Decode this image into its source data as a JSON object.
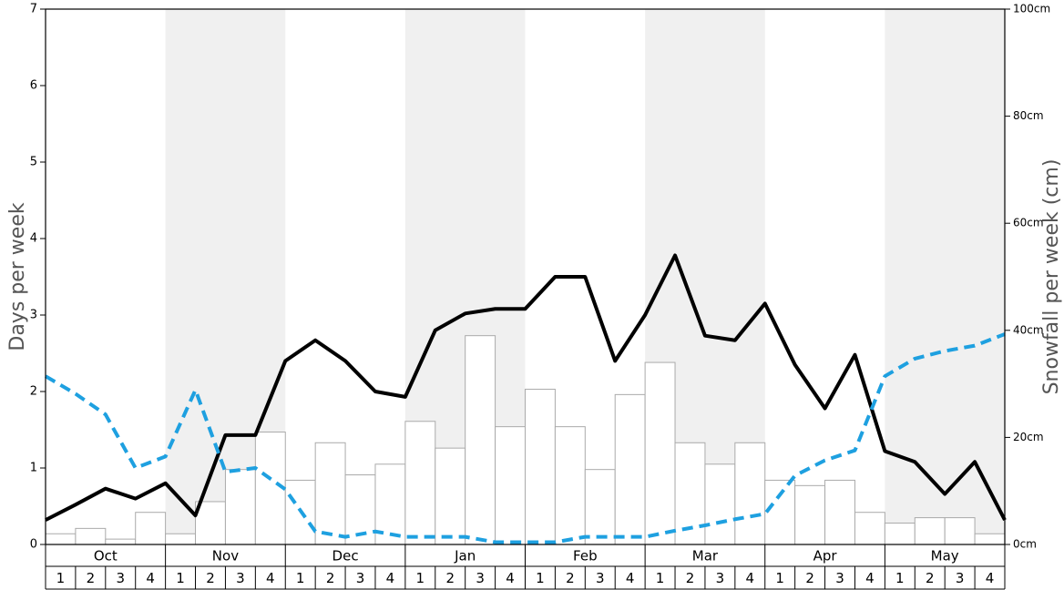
{
  "chart_data": {
    "type": "bar",
    "ylabel": "Days per week",
    "y2label": "Snowfall per week (cm)",
    "months": [
      "Oct",
      "Nov",
      "Dec",
      "Jan",
      "Feb",
      "Mar",
      "Apr",
      "May"
    ],
    "week_labels": [
      1,
      2,
      3,
      4
    ],
    "ylim": [
      0,
      7
    ],
    "yticks": [
      0,
      1,
      2,
      3,
      4,
      5,
      6,
      7
    ],
    "y2lim": [
      0,
      100
    ],
    "y2ticks": [
      {
        "value": 0,
        "label": "0cm"
      },
      {
        "value": 20,
        "label": "20cm"
      },
      {
        "value": 40,
        "label": "40cm"
      },
      {
        "value": 60,
        "label": "60cm"
      },
      {
        "value": 80,
        "label": "80cm"
      },
      {
        "value": 100,
        "label": "100cm"
      }
    ],
    "bars": {
      "axis": "y2",
      "fill": "#ffffff",
      "stroke": "#aaaaaa",
      "values": [
        2,
        3,
        1,
        6,
        2,
        8,
        14,
        21,
        12,
        19,
        13,
        15,
        23,
        18,
        39,
        22,
        29,
        22,
        14,
        28,
        34,
        19,
        15,
        19,
        12,
        11,
        12,
        6,
        4,
        5,
        5,
        2
      ]
    },
    "series": [
      {
        "color": "#000000",
        "dashed": false,
        "values": [
          0.32,
          0.52,
          0.73,
          0.6,
          0.8,
          0.38,
          1.43,
          1.43,
          2.4,
          2.67,
          2.4,
          2.0,
          1.93,
          2.8,
          3.02,
          3.08,
          3.08,
          3.5,
          3.5,
          2.4,
          3.0,
          3.78,
          2.73,
          2.67,
          3.15,
          2.35,
          1.78,
          2.48,
          1.22,
          1.08,
          0.66,
          1.08,
          0.32
        ]
      },
      {
        "color": "#1ea0e0",
        "dashed": true,
        "values": [
          2.2,
          1.97,
          1.7,
          1.0,
          1.15,
          2.02,
          0.95,
          1.0,
          0.72,
          0.17,
          0.1,
          0.17,
          0.1,
          0.1,
          0.1,
          0.03,
          0.03,
          0.03,
          0.1,
          0.1,
          0.1,
          0.18,
          0.25,
          0.33,
          0.4,
          0.9,
          1.1,
          1.23,
          2.2,
          2.43,
          2.53,
          2.6,
          2.75
        ]
      }
    ],
    "shade_color": "#f0f0f0"
  }
}
